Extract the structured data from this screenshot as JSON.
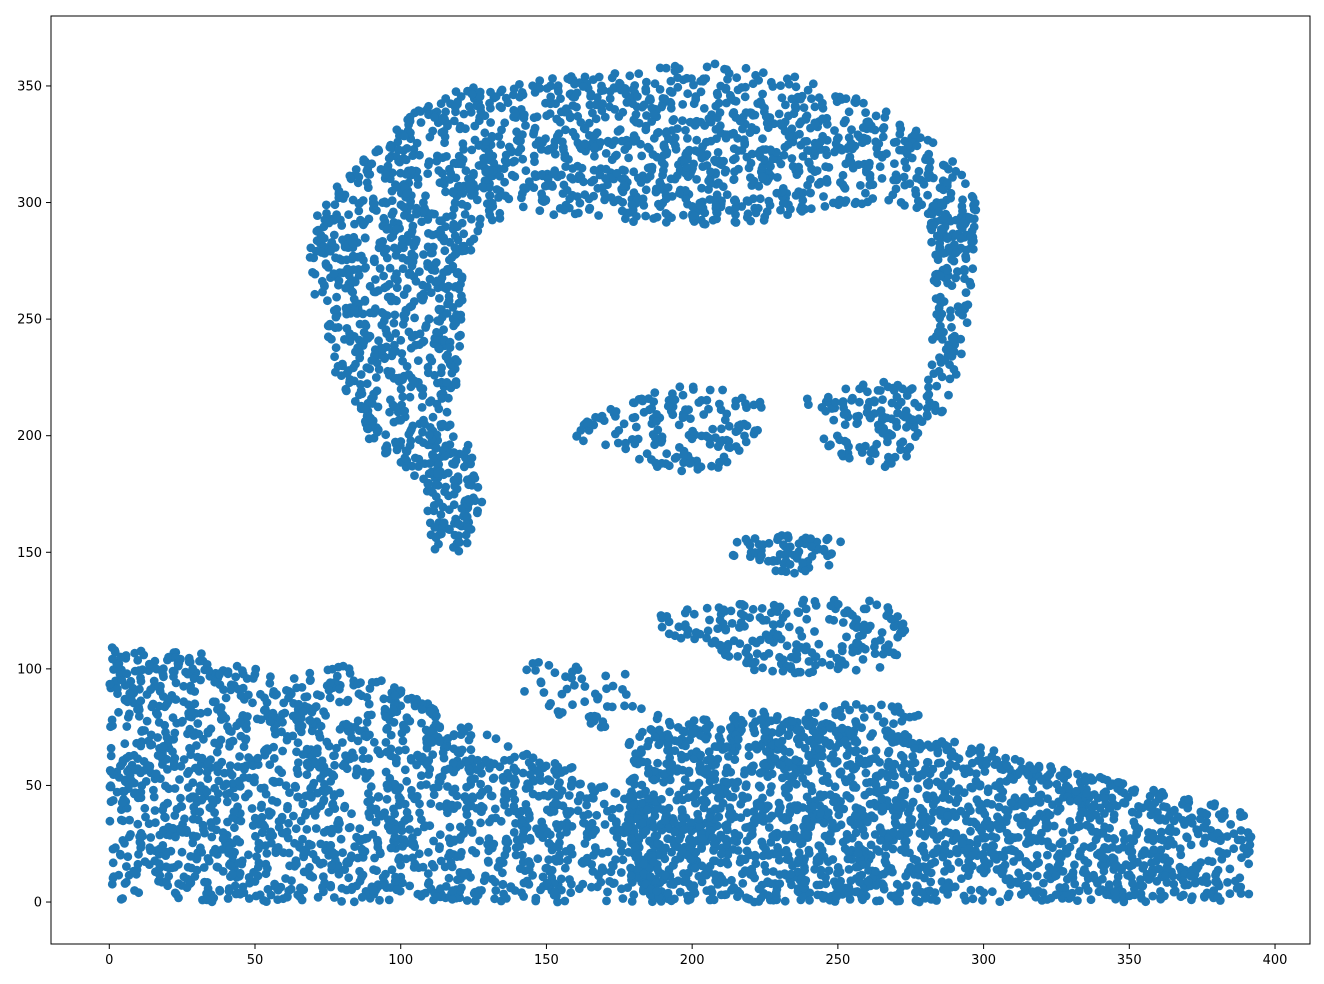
{
  "chart_data": {
    "type": "scatter",
    "title": "",
    "xlabel": "",
    "ylabel": "",
    "xlim": [
      -20,
      412
    ],
    "ylim": [
      -18,
      380
    ],
    "xticks": [
      0,
      50,
      100,
      150,
      200,
      250,
      300,
      350,
      400
    ],
    "yticks": [
      0,
      50,
      100,
      150,
      200,
      250,
      300,
      350
    ],
    "grid": false,
    "legend": "none",
    "marker_color": "#1f77b4",
    "regions": [
      {
        "part": "hair",
        "polygon": [
          [
            70,
            296
          ],
          [
            86,
            318
          ],
          [
            100,
            336
          ],
          [
            118,
            348
          ],
          [
            140,
            352
          ],
          [
            175,
            356
          ],
          [
            205,
            360
          ],
          [
            230,
            356
          ],
          [
            255,
            346
          ],
          [
            275,
            334
          ],
          [
            290,
            318
          ],
          [
            298,
            300
          ],
          [
            296,
            278
          ],
          [
            285,
            280
          ],
          [
            280,
            296
          ],
          [
            268,
            300
          ],
          [
            245,
            297
          ],
          [
            225,
            292
          ],
          [
            200,
            290
          ],
          [
            170,
            292
          ],
          [
            140,
            296
          ],
          [
            128,
            290
          ],
          [
            122,
            272
          ],
          [
            120,
            232
          ],
          [
            118,
            198
          ],
          [
            110,
            178
          ],
          [
            90,
            196
          ],
          [
            80,
            218
          ],
          [
            72,
            248
          ],
          [
            68,
            272
          ]
        ],
        "count": 1900
      },
      {
        "part": "sideburn",
        "polygon": [
          [
            110,
            196
          ],
          [
            124,
            196
          ],
          [
            128,
            172
          ],
          [
            122,
            150
          ],
          [
            112,
            150
          ],
          [
            108,
            168
          ]
        ],
        "count": 110
      },
      {
        "part": "right-ear",
        "polygon": [
          [
            280,
            296
          ],
          [
            298,
            300
          ],
          [
            296,
            262
          ],
          [
            292,
            228
          ],
          [
            286,
            206
          ],
          [
            280,
            210
          ],
          [
            282,
            250
          ]
        ],
        "count": 140
      },
      {
        "part": "left-brow",
        "polygon": [
          [
            156,
            198
          ],
          [
            168,
            212
          ],
          [
            190,
            222
          ],
          [
            212,
            222
          ],
          [
            225,
            214
          ],
          [
            222,
            196
          ],
          [
            208,
            184
          ],
          [
            188,
            184
          ],
          [
            170,
            196
          ]
        ],
        "count": 160
      },
      {
        "part": "right-brow",
        "polygon": [
          [
            238,
            216
          ],
          [
            252,
            224
          ],
          [
            272,
            224
          ],
          [
            284,
            216
          ],
          [
            278,
            194
          ],
          [
            266,
            184
          ],
          [
            250,
            190
          ],
          [
            240,
            204
          ]
        ],
        "count": 120
      },
      {
        "part": "mustache",
        "polygon": [
          [
            210,
            154
          ],
          [
            230,
            158
          ],
          [
            252,
            156
          ],
          [
            248,
            142
          ],
          [
            232,
            140
          ],
          [
            214,
            148
          ]
        ],
        "count": 70
      },
      {
        "part": "lips",
        "polygon": [
          [
            186,
            124
          ],
          [
            212,
            128
          ],
          [
            240,
            130
          ],
          [
            262,
            130
          ],
          [
            274,
            122
          ],
          [
            270,
            100
          ],
          [
            250,
            98
          ],
          [
            224,
            98
          ],
          [
            206,
            108
          ],
          [
            190,
            116
          ]
        ],
        "count": 220
      },
      {
        "part": "chin",
        "polygon": [
          [
            182,
            82
          ],
          [
            200,
            78
          ],
          [
            240,
            84
          ],
          [
            268,
            88
          ],
          [
            278,
            80
          ],
          [
            262,
            68
          ],
          [
            230,
            68
          ],
          [
            195,
            72
          ]
        ],
        "count": 90
      },
      {
        "part": "body-left",
        "polygon": [
          [
            0,
            110
          ],
          [
            30,
            108
          ],
          [
            60,
            96
          ],
          [
            80,
            102
          ],
          [
            100,
            92
          ],
          [
            130,
            72
          ],
          [
            160,
            58
          ],
          [
            180,
            44
          ],
          [
            210,
            34
          ],
          [
            190,
            0
          ],
          [
            0,
            0
          ]
        ],
        "count": 1800
      },
      {
        "part": "body-right",
        "polygon": [
          [
            178,
            72
          ],
          [
            200,
            78
          ],
          [
            225,
            80
          ],
          [
            260,
            76
          ],
          [
            285,
            70
          ],
          [
            315,
            62
          ],
          [
            340,
            54
          ],
          [
            360,
            48
          ],
          [
            380,
            42
          ],
          [
            392,
            38
          ],
          [
            392,
            0
          ],
          [
            178,
            0
          ]
        ],
        "count": 2000
      },
      {
        "part": "collar-edge",
        "polygon": [
          [
            140,
            106
          ],
          [
            160,
            104
          ],
          [
            178,
            98
          ],
          [
            184,
            80
          ],
          [
            170,
            74
          ],
          [
            150,
            80
          ],
          [
            140,
            92
          ]
        ],
        "count": 50
      }
    ]
  }
}
